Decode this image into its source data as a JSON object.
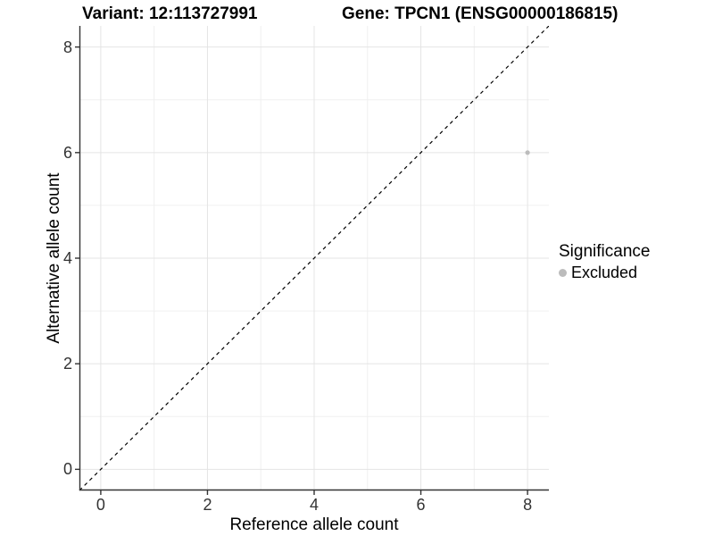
{
  "titles": {
    "variant": "Variant: 12:113727991",
    "gene": "Gene: TPCN1 (ENSG00000186815)"
  },
  "axes": {
    "x_label": "Reference allele count",
    "y_label": "Alternative allele count"
  },
  "legend": {
    "title": "Significance",
    "items": [
      {
        "label": "Excluded",
        "color": "#bcbcbc"
      }
    ]
  },
  "colors": {
    "background": "#ffffff",
    "grid_major": "#e4e4e4",
    "grid_minor": "#f0f0f0",
    "axis_line": "#333333",
    "tick_mark": "#333333",
    "tick_text": "#333333",
    "reference_line": "#000000",
    "point": "#bcbcbc"
  },
  "chart_data": {
    "type": "scatter",
    "title": "Variant: 12:113727991 — Gene: TPCN1 (ENSG00000186815)",
    "xlabel": "Reference allele count",
    "ylabel": "Alternative allele count",
    "xlim": [
      -0.4,
      8.4
    ],
    "ylim": [
      -0.4,
      8.4
    ],
    "x_ticks": [
      0,
      2,
      4,
      6,
      8
    ],
    "y_ticks": [
      0,
      2,
      4,
      6,
      8
    ],
    "x_minor_ticks": [
      1,
      3,
      5,
      7
    ],
    "y_minor_ticks": [
      1,
      3,
      5,
      7
    ],
    "grid": true,
    "legend_position": "right",
    "series": [
      {
        "name": "Excluded",
        "color": "#bcbcbc",
        "points": [
          {
            "x": 8,
            "y": 6
          }
        ]
      }
    ],
    "reference_line": {
      "slope": 1,
      "intercept": 0,
      "style": "dashed",
      "color": "#000000"
    }
  }
}
